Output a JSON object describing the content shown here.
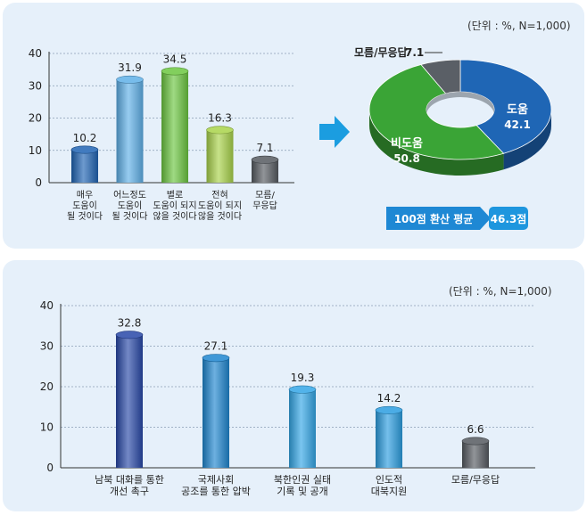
{
  "chart_data": [
    {
      "type": "bar",
      "categories": [
        "매우\n도움이\n될 것이다",
        "어느정도\n도움이\n될 것이다",
        "별로\n도움이 되지\n않을 것이다",
        "전혀\n도움이 되지\n않을 것이다",
        "모름/\n무응답"
      ],
      "values": [
        10.2,
        31.9,
        34.5,
        16.3,
        7.1
      ],
      "value_labels": [
        "10.2",
        "31.9",
        "34.5",
        "16.3",
        "7.1"
      ],
      "yticks": [
        "0",
        "10",
        "20",
        "30",
        "40"
      ],
      "ylim": [
        0,
        40
      ],
      "colors": [
        "#1f64b4",
        "#5fb0e8",
        "#6cc640",
        "#a9d34a",
        "#555a60"
      ],
      "grid": true
    },
    {
      "type": "pie",
      "unit_text": "(단위 : %, N=1,000)",
      "slices": [
        {
          "label": "도움",
          "value": 42.1,
          "value_label": "42.1",
          "color": "#1f66b5"
        },
        {
          "label": "비도움",
          "value": 50.8,
          "value_label": "50.8",
          "color": "#3aa436"
        },
        {
          "label": "모름/무응답",
          "value": 7.1,
          "value_label": "7.1",
          "color": "#5a5f66"
        }
      ],
      "summary_label": "100점 환산 평균",
      "summary_value": "46.3점"
    },
    {
      "type": "bar",
      "unit_text": "(단위 : %, N=1,000)",
      "categories": [
        "남북 대화를 통한\n개선 촉구",
        "국제사회\n공조를 통한 압박",
        "북한인권 실태\n기록 및 공개",
        "인도적\n대북지원",
        "모름/무응답"
      ],
      "values": [
        32.8,
        27.1,
        19.3,
        14.2,
        6.6
      ],
      "value_labels": [
        "32.8",
        "27.1",
        "19.3",
        "14.2",
        "6.6"
      ],
      "yticks": [
        "0",
        "10",
        "20",
        "30",
        "40"
      ],
      "ylim": [
        0,
        40
      ],
      "colors": [
        "#2848a8",
        "#1e86d0",
        "#33a6e6",
        "#2b9de0",
        "#555a60"
      ],
      "grid": true
    }
  ]
}
